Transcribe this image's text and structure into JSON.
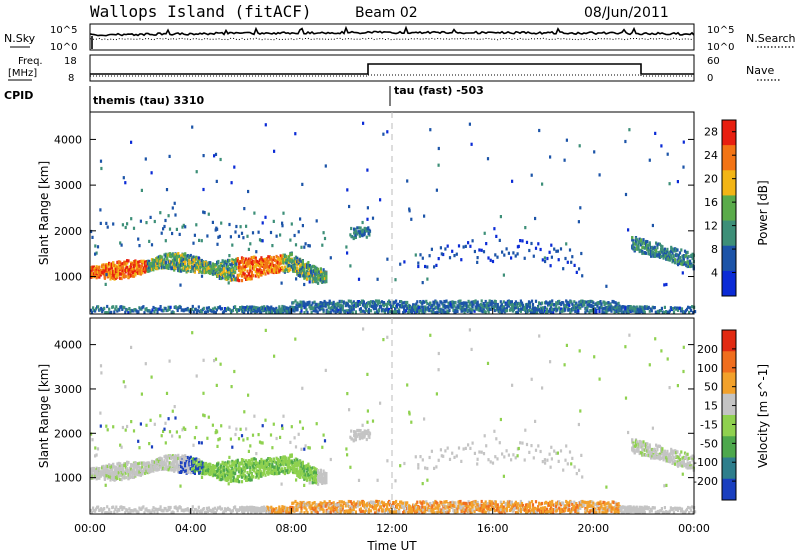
{
  "header": {
    "site": "Wallops Island (fitACF)",
    "beam": "Beam 02",
    "date": "08/Jun/2011"
  },
  "top_panels": {
    "nsky": {
      "left_label": "N.Sky",
      "right_label": "N.Search",
      "left_ticks": [
        "10^5",
        "10^0"
      ],
      "right_ticks": [
        "10^5",
        "10^0"
      ]
    },
    "freq": {
      "left_label_line1": "Freq.",
      "left_label_line2": "[MHz]",
      "right_label": "Nave",
      "left_ticks": [
        "18",
        "8"
      ],
      "right_ticks": [
        "60",
        "0"
      ]
    },
    "cpid": {
      "label": "CPID",
      "modes": [
        "themis (tau) 3310",
        "tau (fast) -503"
      ]
    }
  },
  "chart_data": [
    {
      "type": "heatmap",
      "title": "",
      "ylabel": "Slant Range [km]",
      "ylim": [
        180,
        4600
      ],
      "yticks": [
        "1000",
        "2000",
        "3000",
        "4000"
      ],
      "colorbar": {
        "label": "Power [dB]",
        "ticks": [
          "4",
          "8",
          "12",
          "16",
          "20",
          "24",
          "28"
        ],
        "range": [
          0,
          30
        ],
        "colors": [
          "#0b2bd6",
          "#1c54a8",
          "#3d8f78",
          "#5aab4a",
          "#f3b515",
          "#f37415",
          "#e81f10"
        ]
      },
      "features": [
        {
          "name": "main band",
          "x_hours": [
            0,
            1,
            2,
            3,
            4,
            5,
            6,
            7,
            8,
            9
          ],
          "y_km": [
            1130,
            1160,
            1230,
            1380,
            1320,
            1180,
            1190,
            1280,
            1320,
            1050
          ],
          "peak_power_db": 28
        },
        {
          "name": "ground scatter near range",
          "x_hours": [
            0,
            24
          ],
          "y_km": [
            300,
            300
          ],
          "power_db": 8
        },
        {
          "name": "late-day band",
          "x_hours": [
            21.5,
            22.5,
            23.5,
            24
          ],
          "y_km": [
            1750,
            1600,
            1450,
            1350
          ],
          "power_db": 12
        }
      ]
    },
    {
      "type": "heatmap",
      "title": "",
      "ylabel": "Slant Range [km]",
      "xlabel": "Time UT",
      "xticks": [
        "00:00",
        "04:00",
        "08:00",
        "12:00",
        "16:00",
        "20:00",
        "00:00"
      ],
      "xlim_hours": [
        0,
        24
      ],
      "ylim": [
        180,
        4600
      ],
      "yticks": [
        "1000",
        "2000",
        "3000",
        "4000"
      ],
      "colorbar": {
        "label": "Velocity [m s^-1]",
        "ticks": [
          "200",
          "100",
          "50",
          "15",
          "-15",
          "-50",
          "-100",
          "-200"
        ],
        "colors": [
          "#1a3fbf",
          "#2e7e8c",
          "#4da84c",
          "#8fd14f",
          "#c4c4c4",
          "#f2a12b",
          "#f06e1e",
          "#e22a12"
        ]
      }
    }
  ]
}
